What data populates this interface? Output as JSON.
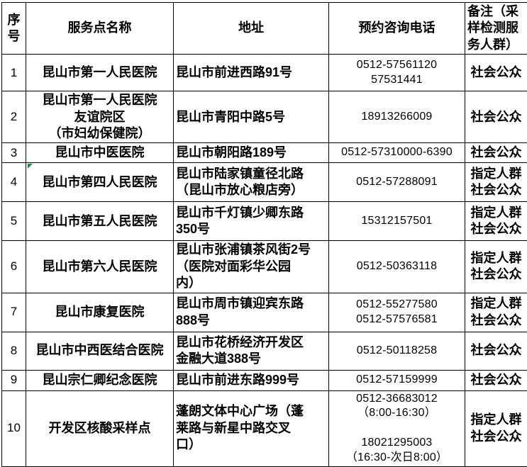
{
  "table": {
    "headers": [
      "序号",
      "服务点名称",
      "地址",
      "预约咨询电话",
      "备注（采样检测服务人群）"
    ],
    "rows": [
      {
        "no": "1",
        "name": "昆山市第一人民医院",
        "address": "昆山市前进西路91号",
        "phone": "0512-57561120\n57531441",
        "note": "社会公众"
      },
      {
        "no": "2",
        "name": "昆山市第一人民医院\n友谊院区\n（市妇幼保健院）",
        "address": "昆山市青阳中路5号",
        "phone": "18913266009",
        "note": "社会公众"
      },
      {
        "no": "3",
        "name": "昆山市中医医院",
        "address": "昆山市朝阳路189号",
        "phone": "0512-57310000-6390",
        "note": "社会公众"
      },
      {
        "no": "4",
        "name": "昆山市第四人民医院",
        "address": "昆山市陆家镇童径北路\n（昆山市放心粮店旁）",
        "phone": "0512-57288091",
        "note": "指定人群\n社会公众"
      },
      {
        "no": "5",
        "name": "昆山市第五人民医院",
        "address": "昆山市千灯镇少卿东路\n350号",
        "phone": "15312157501",
        "note": "指定人群\n社会公众"
      },
      {
        "no": "6",
        "name": "昆山市第六人民医院",
        "address": "昆山市张浦镇茶风街2号\n（医院对面彩华公园\n内）",
        "phone": "0512-50363118",
        "note": "指定人群\n社会公众"
      },
      {
        "no": "7",
        "name": "昆山市康复医院",
        "address": "昆山市周市镇迎宾东路\n888号",
        "phone": "0512-55277580\n0512-57576581",
        "note": "指定人群\n社会公众"
      },
      {
        "no": "8",
        "name": "昆山市中西医结合医院",
        "address": "昆山市花桥经济开发区\n金融大道388号",
        "phone": "0512-50118258",
        "note": "社会公众"
      },
      {
        "no": "9",
        "name": "昆山宗仁卿纪念医院",
        "address": "昆山市前进东路999号",
        "phone": "0512-57159999",
        "note": "社会公众"
      },
      {
        "no": "10",
        "name": "开发区核酸采样点",
        "address": "蓬朗文体中心广场（蓬\n莱路与新星中路交叉\n口）",
        "phone": "0512-36683012\n（8:00-16:30）\n\n18021295003\n（16:30-次日8:00）",
        "note": "指定人群\n社会公众"
      }
    ]
  },
  "colors": {
    "border": "#000000",
    "text": "#000000",
    "error_indicator": "#1e8a3c"
  }
}
